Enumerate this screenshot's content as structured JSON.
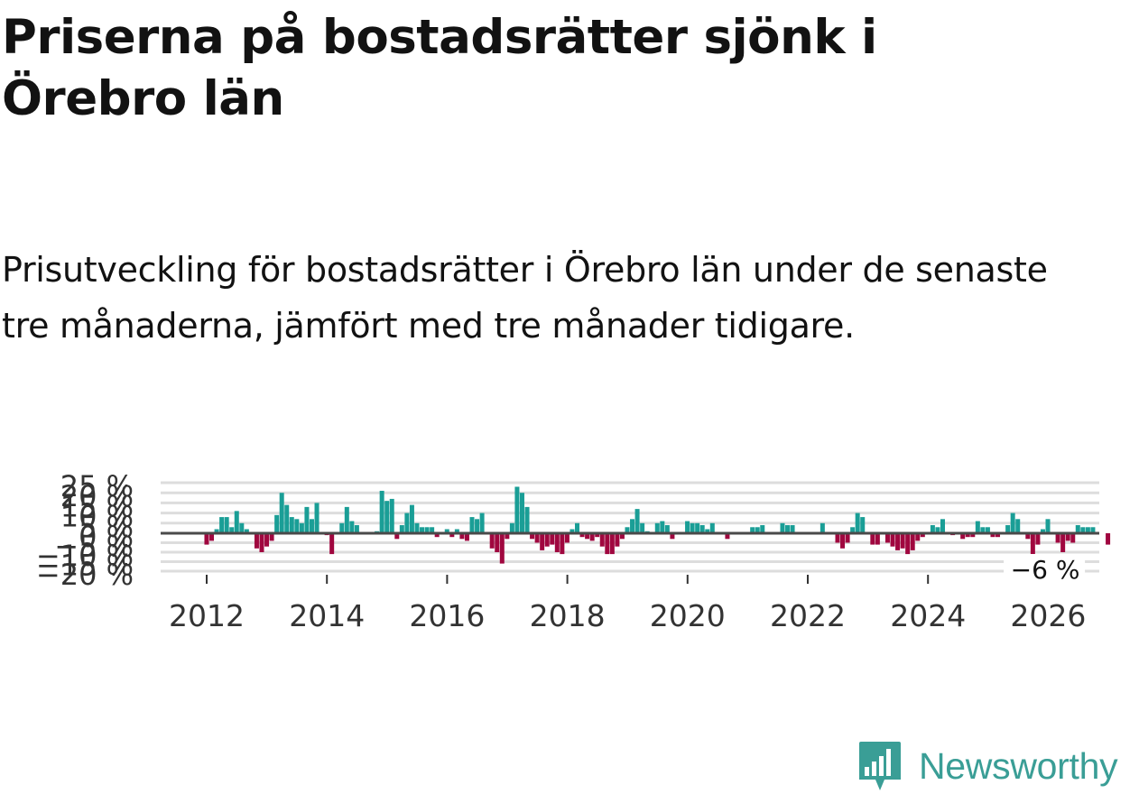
{
  "title": "Priserna på bostadsrätter sjönk i Örebro län",
  "subtitle": "Prisutveckling för bostadsrätter i Örebro län under de senaste tre månaderna, jämfört med tre månader tidigare.",
  "brand": {
    "name": "Newsworthy",
    "color": "#3a9e96"
  },
  "colors": {
    "positive": "#1a9e96",
    "negative": "#a0073f",
    "zero_line": "#4a4a4a",
    "grid": "#dddddd"
  },
  "chart_data": {
    "type": "bar",
    "unit": "%",
    "ylim": [
      -20,
      25
    ],
    "yticks": [
      25,
      20,
      15,
      10,
      5,
      0,
      -5,
      -10,
      -15,
      -20
    ],
    "ytick_labels": [
      "25 %",
      "20 %",
      "15 %",
      "10 %",
      "5 %",
      "0 %",
      "−5 %",
      "−10 %",
      "−15 %",
      "−20 %"
    ],
    "xticks": [
      2012,
      2014,
      2016,
      2018,
      2020,
      2022,
      2024,
      2026
    ],
    "x_start": 2011.0,
    "x_step": 0.0833,
    "annotation": {
      "label": "−6 %",
      "x": 2025.83,
      "value": -6
    },
    "values": [
      0,
      0,
      0,
      0,
      0,
      0,
      0,
      0,
      0,
      0,
      0,
      0,
      -6,
      -4,
      2,
      8,
      8,
      3,
      11,
      5,
      2,
      0,
      -8,
      -10,
      -7,
      -4,
      9,
      20,
      14,
      8,
      7,
      5,
      13,
      7,
      15,
      0,
      -1,
      -11,
      0,
      5,
      13,
      6,
      4,
      0,
      0,
      0,
      1,
      21,
      16,
      17,
      -3,
      4,
      10,
      14,
      5,
      3,
      3,
      3,
      -2,
      0,
      2,
      -2,
      2,
      -3,
      -4,
      8,
      7,
      10,
      0,
      -8,
      -10,
      -16,
      -3,
      5,
      23,
      20,
      13,
      -3,
      -5,
      -9,
      -7,
      -6,
      -10,
      -11,
      -5,
      2,
      5,
      -2,
      -3,
      -4,
      -2,
      -7,
      -11,
      -11,
      -7,
      -3,
      3,
      7,
      12,
      5,
      1,
      0,
      5,
      6,
      4,
      -3,
      0,
      0,
      6,
      5,
      5,
      4,
      2,
      5,
      0,
      0,
      -3,
      0,
      0,
      0,
      0,
      3,
      3,
      4,
      0,
      0,
      0,
      5,
      4,
      4,
      0,
      0,
      0,
      0,
      0,
      5,
      0,
      0,
      -5,
      -8,
      -5,
      3,
      10,
      8,
      0,
      -6,
      -6,
      0,
      -5,
      -7,
      -9,
      -8,
      -11,
      -9,
      -4,
      -2,
      0,
      4,
      3,
      7,
      0,
      -1,
      0,
      -3,
      -2,
      -2,
      6,
      3,
      3,
      -2,
      -2,
      0,
      4,
      10,
      7,
      0,
      -3,
      -12,
      -6,
      2,
      7,
      0,
      -5,
      -10,
      -4,
      -5,
      4,
      3,
      3,
      3,
      0,
      0,
      -6,
      0,
      0,
      0,
      0,
      0
    ]
  }
}
